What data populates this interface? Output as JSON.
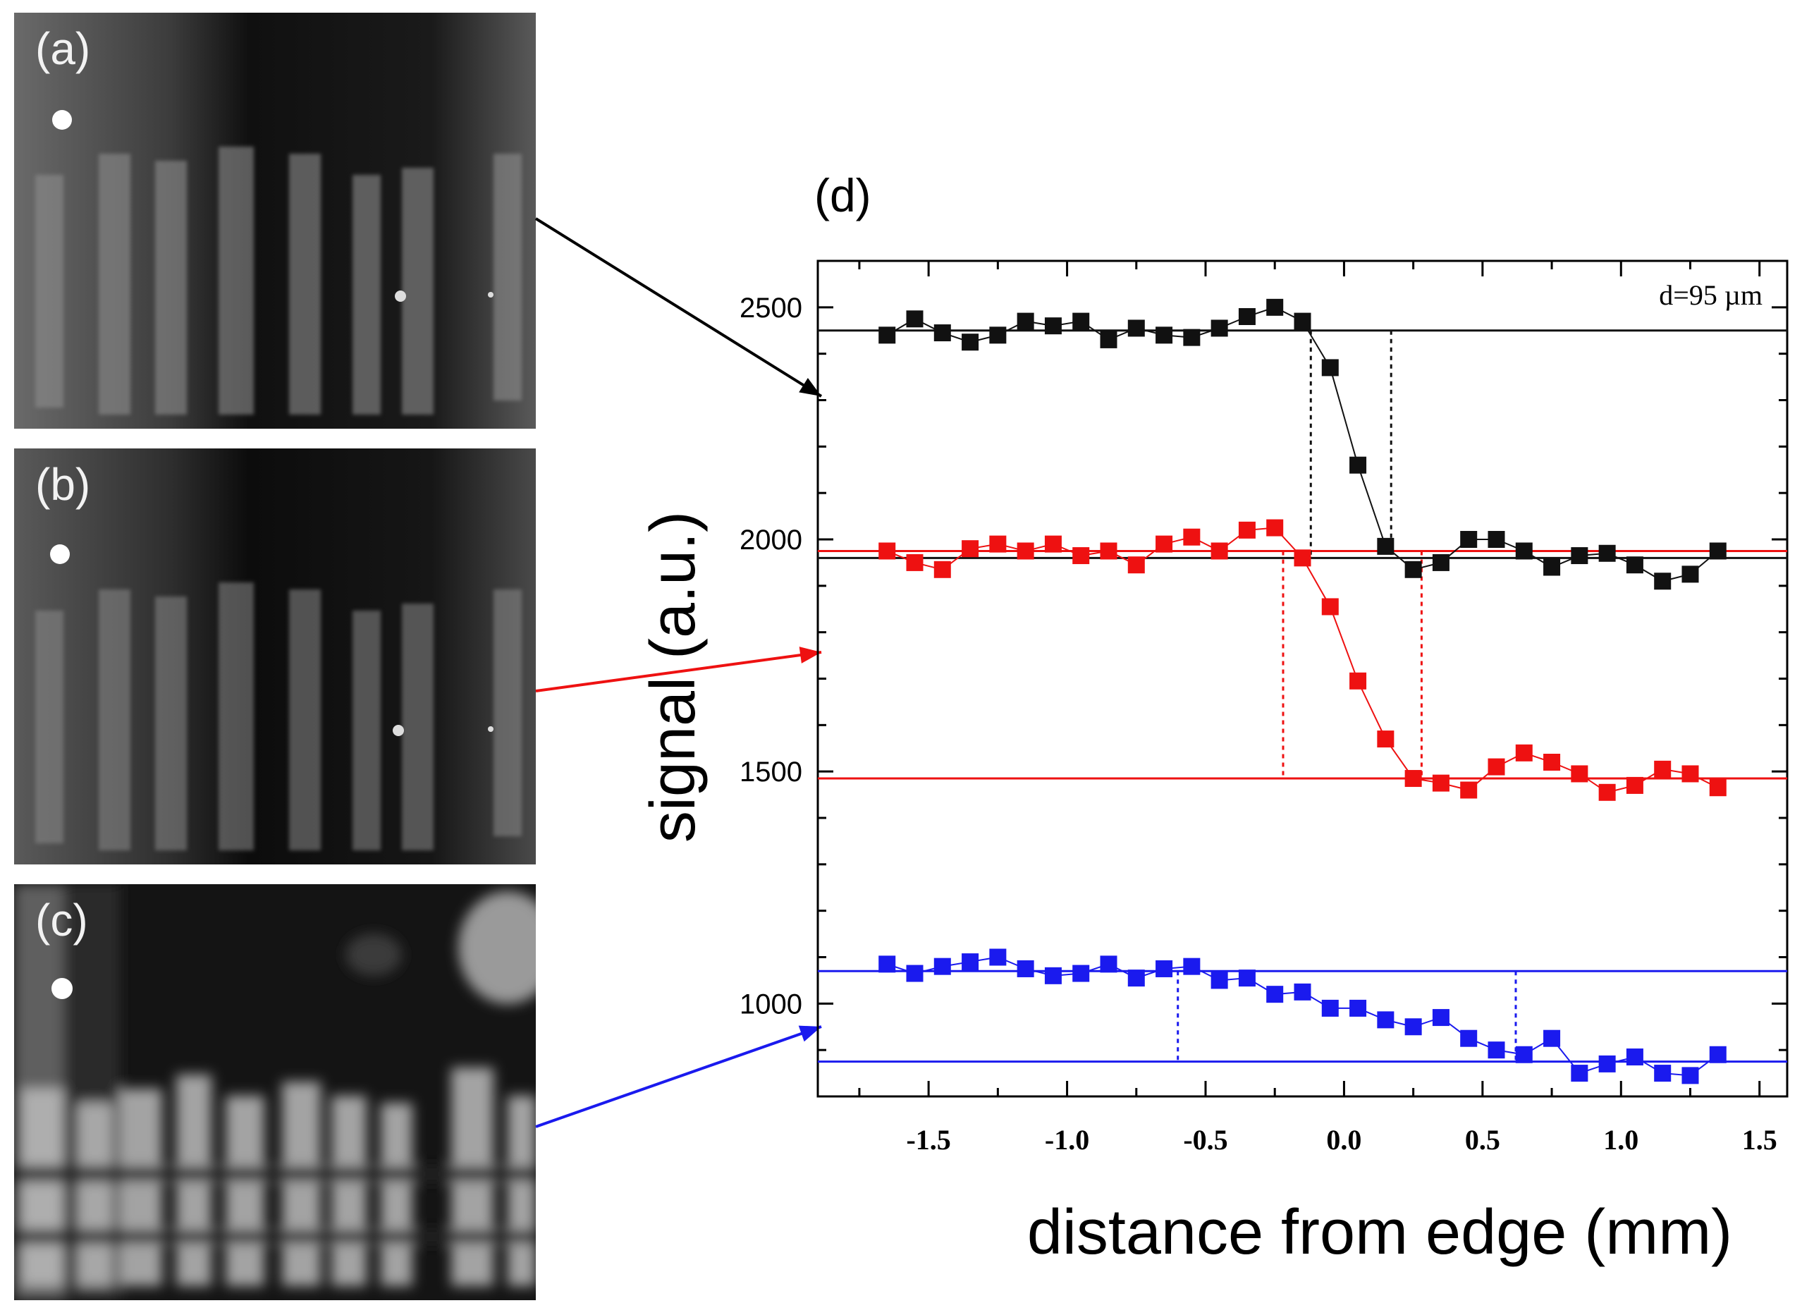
{
  "panels": [
    {
      "label": "(a)"
    },
    {
      "label": "(b)"
    },
    {
      "label": "(c)"
    }
  ],
  "chart_data": {
    "type": "scatter",
    "panel_label": "(d)",
    "annotation": "d=95 µm",
    "xlabel": "distance from edge (mm)",
    "ylabel": "signal (a.u.)",
    "xlim": [
      -1.9,
      1.6
    ],
    "ylim": [
      800,
      2600
    ],
    "xticks": [
      "-1.5",
      "-1.0",
      "-0.5",
      "0.0",
      "0.5",
      "1.0",
      "1.5"
    ],
    "xtick_values": [
      -1.5,
      -1.0,
      -0.5,
      0.0,
      0.5,
      1.0,
      1.5
    ],
    "yticks": [
      "1000",
      "1500",
      "2000",
      "2500"
    ],
    "ytick_values": [
      1000,
      1500,
      2000,
      2500
    ],
    "series": [
      {
        "color": "#111111",
        "x": [
          -1.65,
          -1.55,
          -1.45,
          -1.35,
          -1.25,
          -1.15,
          -1.05,
          -0.95,
          -0.85,
          -0.75,
          -0.65,
          -0.55,
          -0.45,
          -0.35,
          -0.25,
          -0.15,
          -0.05,
          0.05,
          0.15,
          0.25,
          0.35,
          0.45,
          0.55,
          0.65,
          0.75,
          0.85,
          0.95,
          1.05,
          1.15,
          1.25,
          1.35
        ],
        "y": [
          2440,
          2475,
          2445,
          2425,
          2440,
          2470,
          2460,
          2470,
          2430,
          2455,
          2440,
          2435,
          2455,
          2480,
          2500,
          2470,
          2370,
          2160,
          1985,
          1935,
          1950,
          2000,
          2000,
          1975,
          1940,
          1965,
          1970,
          1945,
          1910,
          1925,
          1975
        ],
        "upper_level": 2450,
        "lower_level": 1960,
        "edge_markers_x": [
          -0.12,
          0.17
        ]
      },
      {
        "color": "#ee1111",
        "x": [
          -1.65,
          -1.55,
          -1.45,
          -1.35,
          -1.25,
          -1.15,
          -1.05,
          -0.95,
          -0.85,
          -0.75,
          -0.65,
          -0.55,
          -0.45,
          -0.35,
          -0.25,
          -0.15,
          -0.05,
          0.05,
          0.15,
          0.25,
          0.35,
          0.45,
          0.55,
          0.65,
          0.75,
          0.85,
          0.95,
          1.05,
          1.15,
          1.25,
          1.35
        ],
        "y": [
          1975,
          1950,
          1935,
          1980,
          1990,
          1975,
          1990,
          1965,
          1975,
          1945,
          1990,
          2005,
          1975,
          2020,
          2025,
          1960,
          1855,
          1695,
          1570,
          1485,
          1475,
          1460,
          1510,
          1540,
          1520,
          1495,
          1455,
          1470,
          1505,
          1495,
          1465
        ],
        "upper_level": 1975,
        "lower_level": 1485,
        "edge_markers_x": [
          -0.22,
          0.28
        ]
      },
      {
        "color": "#1a1aee",
        "x": [
          -1.65,
          -1.55,
          -1.45,
          -1.35,
          -1.25,
          -1.15,
          -1.05,
          -0.95,
          -0.85,
          -0.75,
          -0.65,
          -0.55,
          -0.45,
          -0.35,
          -0.25,
          -0.15,
          -0.05,
          0.05,
          0.15,
          0.25,
          0.35,
          0.45,
          0.55,
          0.65,
          0.75,
          0.85,
          0.95,
          1.05,
          1.15,
          1.25,
          1.35
        ],
        "y": [
          1085,
          1065,
          1080,
          1090,
          1100,
          1075,
          1060,
          1065,
          1085,
          1055,
          1075,
          1080,
          1050,
          1055,
          1020,
          1025,
          990,
          990,
          965,
          950,
          970,
          925,
          900,
          890,
          925,
          850,
          870,
          885,
          850,
          845,
          890
        ],
        "upper_level": 1070,
        "lower_level": 875,
        "edge_markers_x": [
          -0.6,
          0.62
        ]
      }
    ]
  }
}
